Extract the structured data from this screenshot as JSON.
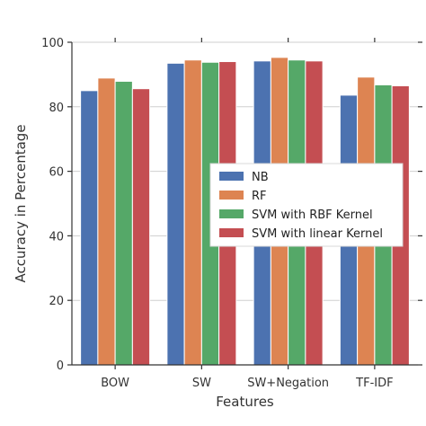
{
  "chart_data": {
    "type": "bar",
    "title": "",
    "xlabel": "Features",
    "ylabel": "Accuracy in Percentage",
    "categories": [
      "BOW",
      "SW",
      "SW+Negation",
      "TF-IDF"
    ],
    "series": [
      {
        "name": "NB",
        "color": "#4c72b0",
        "values": [
          85.0,
          93.5,
          94.2,
          83.6
        ]
      },
      {
        "name": "RF",
        "color": "#dd8452",
        "values": [
          88.9,
          94.5,
          95.3,
          89.2
        ]
      },
      {
        "name": "SVM with RBF Kernel",
        "color": "#55a868",
        "values": [
          87.9,
          93.8,
          94.5,
          86.8
        ]
      },
      {
        "name": "SVM with linear Kernel",
        "color": "#c44e52",
        "values": [
          85.6,
          94.0,
          94.2,
          86.5
        ]
      }
    ],
    "ylim": [
      0,
      100
    ],
    "yticks": [
      0,
      20,
      40,
      60,
      80,
      100
    ],
    "grid": "horizontal",
    "legend_position": "center-right"
  }
}
